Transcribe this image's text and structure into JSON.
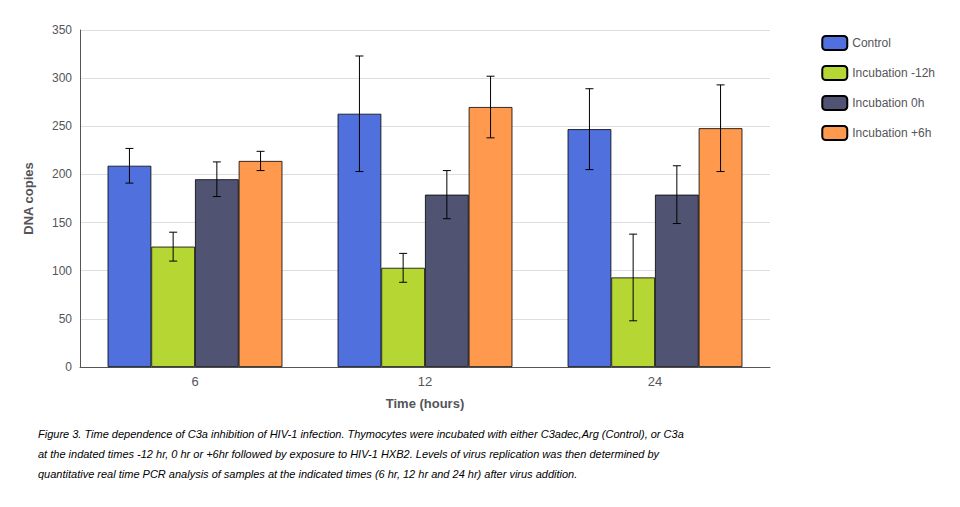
{
  "chart_data": {
    "type": "bar",
    "xlabel": "Time (hours)",
    "ylabel": "DNA copies",
    "categories": [
      "6",
      "12",
      "24"
    ],
    "series": [
      {
        "name": "Control",
        "values": [
          209,
          263,
          247
        ],
        "errors": [
          18,
          60,
          42
        ]
      },
      {
        "name": "Incubation -12h",
        "values": [
          125,
          103,
          93
        ],
        "errors": [
          15,
          15,
          45
        ]
      },
      {
        "name": "Incubation 0h",
        "values": [
          195,
          179,
          179
        ],
        "errors": [
          18,
          25,
          30
        ]
      },
      {
        "name": "Incubation +6h",
        "values": [
          214,
          270,
          248
        ],
        "errors": [
          10,
          32,
          45
        ]
      }
    ],
    "ylim": [
      0,
      350
    ],
    "yticks": [
      0,
      50,
      100,
      150,
      200,
      250,
      300,
      350
    ],
    "grid": true,
    "legend": "upper right",
    "annotations": [
      "Figure 3. Time dependence of C3a inhibition of HIV-1 infection. Thymocytes were incubated with either C3adec,Arg (Control), or C3a",
      "at the indated times -12 hr, 0 hr or +6hr followed by exposure to HIV-1 HXB2. Levels of virus replication was then determined by",
      "quantitative real time PCR analysis of samples at the indicated times (6 hr, 12 hr and 24 hr) after virus addition."
    ]
  }
}
